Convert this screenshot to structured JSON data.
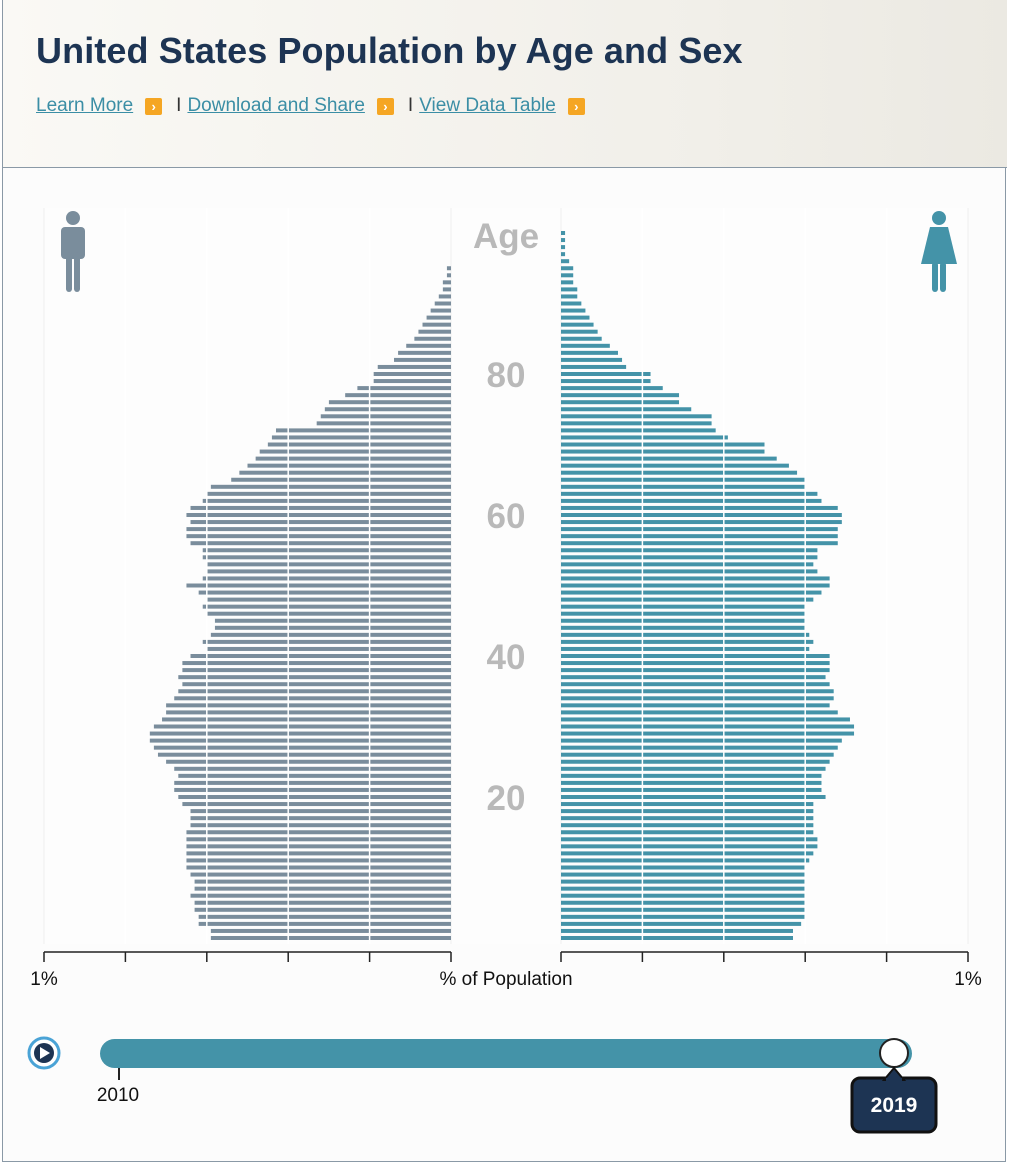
{
  "header": {
    "title": "United States Population by Age and Sex",
    "links": [
      {
        "label": "Learn More"
      },
      {
        "label": "Download and Share"
      },
      {
        "label": "View Data Table"
      }
    ],
    "separator": "I"
  },
  "chart_data": {
    "type": "bar",
    "orientation": "horizontal-pyramid",
    "xlabel": "% of Population",
    "x_tick_labels": {
      "left": "1%",
      "right": "1%"
    },
    "xlim": [
      0,
      1
    ],
    "y_label_title": "Age",
    "y_tick_labels": [
      "20",
      "40",
      "60",
      "80"
    ],
    "ages": [
      0,
      1,
      2,
      3,
      4,
      5,
      6,
      7,
      8,
      9,
      10,
      11,
      12,
      13,
      14,
      15,
      16,
      17,
      18,
      19,
      20,
      21,
      22,
      23,
      24,
      25,
      26,
      27,
      28,
      29,
      30,
      31,
      32,
      33,
      34,
      35,
      36,
      37,
      38,
      39,
      40,
      41,
      42,
      43,
      44,
      45,
      46,
      47,
      48,
      49,
      50,
      51,
      52,
      53,
      54,
      55,
      56,
      57,
      58,
      59,
      60,
      61,
      62,
      63,
      64,
      65,
      66,
      67,
      68,
      69,
      70,
      71,
      72,
      73,
      74,
      75,
      76,
      77,
      78,
      79,
      80,
      81,
      82,
      83,
      84,
      85,
      86,
      87,
      88,
      89,
      90,
      91,
      92,
      93,
      94,
      95,
      96,
      97,
      98,
      99,
      100
    ],
    "series": [
      {
        "values": [
          0.59,
          0.59,
          0.62,
          0.62,
          0.63,
          0.63,
          0.64,
          0.63,
          0.63,
          0.64,
          0.65,
          0.65,
          0.65,
          0.65,
          0.65,
          0.65,
          0.64,
          0.64,
          0.64,
          0.66,
          0.67,
          0.68,
          0.68,
          0.67,
          0.68,
          0.7,
          0.72,
          0.73,
          0.74,
          0.74,
          0.73,
          0.71,
          0.7,
          0.7,
          0.68,
          0.67,
          0.66,
          0.67,
          0.66,
          0.66,
          0.64,
          0.6,
          0.61,
          0.59,
          0.58,
          0.58,
          0.6,
          0.61,
          0.6,
          0.62,
          0.65,
          0.61,
          0.6,
          0.6,
          0.61,
          0.61,
          0.64,
          0.65,
          0.65,
          0.64,
          0.65,
          0.64,
          0.61,
          0.6,
          0.59,
          0.54,
          0.52,
          0.5,
          0.48,
          0.47,
          0.45,
          0.44,
          0.43,
          0.33,
          0.32,
          0.31,
          0.3,
          0.26,
          0.23,
          0.19,
          0.19,
          0.18,
          0.14,
          0.13,
          0.11,
          0.09,
          0.08,
          0.07,
          0.06,
          0.05,
          0.04,
          0.03,
          0.02,
          0.02,
          0.01,
          0.01,
          0.0,
          0.0,
          0.0,
          0.0,
          0.0
        ]
      },
      {
        "values": [
          0.57,
          0.57,
          0.59,
          0.6,
          0.6,
          0.6,
          0.6,
          0.6,
          0.6,
          0.6,
          0.6,
          0.61,
          0.62,
          0.63,
          0.63,
          0.62,
          0.62,
          0.62,
          0.62,
          0.62,
          0.65,
          0.64,
          0.64,
          0.64,
          0.65,
          0.66,
          0.67,
          0.68,
          0.69,
          0.72,
          0.72,
          0.71,
          0.68,
          0.66,
          0.67,
          0.67,
          0.66,
          0.65,
          0.66,
          0.66,
          0.66,
          0.61,
          0.62,
          0.61,
          0.6,
          0.6,
          0.6,
          0.6,
          0.62,
          0.64,
          0.66,
          0.66,
          0.63,
          0.62,
          0.63,
          0.63,
          0.68,
          0.68,
          0.68,
          0.69,
          0.69,
          0.68,
          0.64,
          0.63,
          0.6,
          0.6,
          0.58,
          0.56,
          0.53,
          0.5,
          0.5,
          0.41,
          0.38,
          0.37,
          0.37,
          0.32,
          0.29,
          0.29,
          0.25,
          0.22,
          0.22,
          0.16,
          0.15,
          0.14,
          0.12,
          0.1,
          0.09,
          0.08,
          0.07,
          0.06,
          0.05,
          0.04,
          0.04,
          0.03,
          0.03,
          0.03,
          0.02,
          0.01,
          0.01,
          0.01,
          0.01
        ]
      }
    ],
    "slider": {
      "start_label": "2010",
      "selected_label": "2019"
    }
  },
  "icons": {
    "male": "male-figure-icon",
    "female": "female-figure-icon",
    "play": "play-icon",
    "arrow": "arrow-right-icon"
  },
  "colors": {
    "male": "#7a8d9c",
    "female": "#4493a8",
    "title": "#1d3453",
    "link": "#3b8ea5",
    "link_arrow": "#f5a623",
    "slider": "#4493a8",
    "bubble": "#1d3453"
  }
}
